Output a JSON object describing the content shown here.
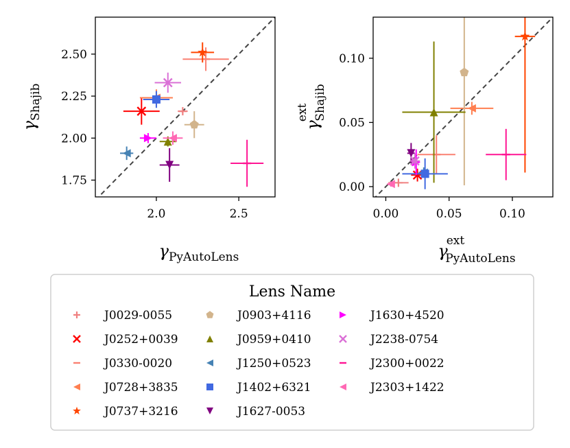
{
  "legend": {
    "title": "Lens Name",
    "columns": [
      [
        "J0029-0055",
        "J0252+0039",
        "J0330-0020",
        "J0728+3835",
        "J0737+3216"
      ],
      [
        "J0903+4116",
        "J0959+0410",
        "J1250+0523",
        "J1402+6321",
        "J1627-0053"
      ],
      [
        "J1630+4520",
        "J2238-0754",
        "J2300+0022",
        "J2303+1422"
      ]
    ]
  },
  "chart_data": [
    {
      "type": "scatter",
      "title": "",
      "xlabel": "γ_PyAutoLens",
      "ylabel": "γ_Shajib",
      "xlabel_main": "γ",
      "xlabel_sub": "PyAutoLens",
      "ylabel_main": "γ",
      "ylabel_sub": "Shajib",
      "xlim": [
        1.63,
        2.72
      ],
      "ylim": [
        1.65,
        2.72
      ],
      "xticks": [
        2.0,
        2.5
      ],
      "xtick_labels": [
        "2.0",
        "2.5"
      ],
      "yticks": [
        1.75,
        2.0,
        2.25,
        2.5
      ],
      "ytick_labels": [
        "1.75",
        "2.00",
        "2.25",
        "2.50"
      ],
      "reference_line": "y = x (dashed)",
      "series": [
        {
          "name": "J0029-0055",
          "color": "#f08080",
          "marker": "plus",
          "x": 2.16,
          "y": 2.16,
          "xerr": 0.03,
          "yerr": 0.0
        },
        {
          "name": "J0252+0039",
          "color": "#ff0000",
          "marker": "x",
          "x": 1.91,
          "y": 2.16,
          "xerr": 0.11,
          "yerr": 0.08
        },
        {
          "name": "J0330-0020",
          "color": "#fa8072",
          "marker": "hline",
          "x": 2.3,
          "y": 2.47,
          "xerr": 0.14,
          "yerr": 0.07
        },
        {
          "name": "J0728+3835",
          "color": "#ff7f50",
          "marker": "triangle-left",
          "x": 2.0,
          "y": 2.24,
          "xerr": 0.1,
          "yerr": 0.05
        },
        {
          "name": "J0737+3216",
          "color": "#ff4500",
          "marker": "star",
          "x": 2.28,
          "y": 2.51,
          "xerr": 0.07,
          "yerr": 0.06
        },
        {
          "name": "J0903+4116",
          "color": "#d2b48c",
          "marker": "pentagon",
          "x": 2.23,
          "y": 2.08,
          "xerr": 0.06,
          "yerr": 0.08
        },
        {
          "name": "J0959+0410",
          "color": "#808000",
          "marker": "triangle-up",
          "x": 2.07,
          "y": 1.98,
          "xerr": 0.05,
          "yerr": 0.03
        },
        {
          "name": "J1250+0523",
          "color": "#4682b4",
          "marker": "triangle-left",
          "x": 1.82,
          "y": 1.91,
          "xerr": 0.04,
          "yerr": 0.04
        },
        {
          "name": "J1402+6321",
          "color": "#4169e1",
          "marker": "square",
          "x": 2.0,
          "y": 2.23,
          "xerr": 0.08,
          "yerr": 0.05
        },
        {
          "name": "J1627-0053",
          "color": "#800080",
          "marker": "triangle-down",
          "x": 2.08,
          "y": 1.84,
          "xerr": 0.06,
          "yerr": 0.1
        },
        {
          "name": "J1630+4520",
          "color": "#ff00ff",
          "marker": "triangle-right",
          "x": 1.95,
          "y": 2.0,
          "xerr": 0.05,
          "yerr": 0.03
        },
        {
          "name": "J2238-0754",
          "color": "#da70d6",
          "marker": "x",
          "x": 2.07,
          "y": 2.33,
          "xerr": 0.08,
          "yerr": 0.06
        },
        {
          "name": "J2300+0022",
          "color": "#ff1493",
          "marker": "hline",
          "x": 2.55,
          "y": 1.85,
          "xerr": 0.1,
          "yerr": 0.14
        },
        {
          "name": "J2303+1422",
          "color": "#ff69b4",
          "marker": "triangle-left",
          "x": 2.1,
          "y": 2.0,
          "xerr": 0.06,
          "yerr": 0.04
        }
      ]
    },
    {
      "type": "scatter",
      "title": "",
      "xlabel": "γ^ext_PyAutoLens",
      "ylabel": "γ^ext_Shajib",
      "xlabel_main": "γ",
      "xlabel_sub": "PyAutoLens",
      "xlabel_sup": "ext",
      "ylabel_main": "γ",
      "ylabel_sub": "Shajib",
      "ylabel_sup": "ext",
      "xlim": [
        -0.01,
        0.132
      ],
      "ylim": [
        -0.008,
        0.132
      ],
      "xticks": [
        0.0,
        0.05,
        0.1
      ],
      "xtick_labels": [
        "0.00",
        "0.05",
        "0.10"
      ],
      "yticks": [
        0.0,
        0.05,
        0.1
      ],
      "ytick_labels": [
        "0.00",
        "0.05",
        "0.10"
      ],
      "reference_line": "y = x (dashed)",
      "series": [
        {
          "name": "J0029-0055",
          "color": "#f08080",
          "marker": "plus",
          "x": 0.01,
          "y": 0.003,
          "xerr": 0.008,
          "yerr": 0.002
        },
        {
          "name": "J0252+0039",
          "color": "#ff0000",
          "marker": "x",
          "x": 0.025,
          "y": 0.009,
          "xerr": 0.005,
          "yerr": 0.005
        },
        {
          "name": "J0330-0020",
          "color": "#fa8072",
          "marker": "hline",
          "x": 0.04,
          "y": 0.025,
          "xerr": 0.015,
          "yerr": 0.015
        },
        {
          "name": "J0728+3835",
          "color": "#ff7f50",
          "marker": "triangle-left",
          "x": 0.068,
          "y": 0.061,
          "xerr": 0.017,
          "yerr": 0.005
        },
        {
          "name": "J0737+3216",
          "color": "#ff4500",
          "marker": "star",
          "x": 0.11,
          "y": 0.117,
          "xerr": 0.008,
          "yerr": 0.106
        },
        {
          "name": "J0903+4116",
          "color": "#d2b48c",
          "marker": "pentagon",
          "x": 0.062,
          "y": 0.089,
          "xerr": 0.003,
          "yerr": 0.088
        },
        {
          "name": "J0959+0410",
          "color": "#808000",
          "marker": "triangle-up",
          "x": 0.038,
          "y": 0.058,
          "xerr": 0.025,
          "yerr": 0.055
        },
        {
          "name": "J1250+0523",
          "color": "#4682b4",
          "marker": "triangle-left",
          "x": 0.03,
          "y": 0.011,
          "xerr": 0.004,
          "yerr": 0.004
        },
        {
          "name": "J1402+6321",
          "color": "#4169e1",
          "marker": "square",
          "x": 0.031,
          "y": 0.01,
          "xerr": 0.018,
          "yerr": 0.012
        },
        {
          "name": "J1627-0053",
          "color": "#800080",
          "marker": "triangle-down",
          "x": 0.02,
          "y": 0.026,
          "xerr": 0.003,
          "yerr": 0.008
        },
        {
          "name": "J1630+4520",
          "color": "#ff00ff",
          "marker": "triangle-right",
          "x": 0.024,
          "y": 0.019,
          "xerr": 0.003,
          "yerr": 0.01
        },
        {
          "name": "J2238-0754",
          "color": "#da70d6",
          "marker": "x",
          "x": 0.023,
          "y": 0.02,
          "xerr": 0.004,
          "yerr": 0.006
        },
        {
          "name": "J2300+0022",
          "color": "#ff1493",
          "marker": "hline",
          "x": 0.095,
          "y": 0.025,
          "xerr": 0.016,
          "yerr": 0.02
        },
        {
          "name": "J2303+1422",
          "color": "#ff69b4",
          "marker": "triangle-left",
          "x": 0.004,
          "y": 0.002,
          "xerr": 0.003,
          "yerr": 0.002
        }
      ]
    }
  ]
}
